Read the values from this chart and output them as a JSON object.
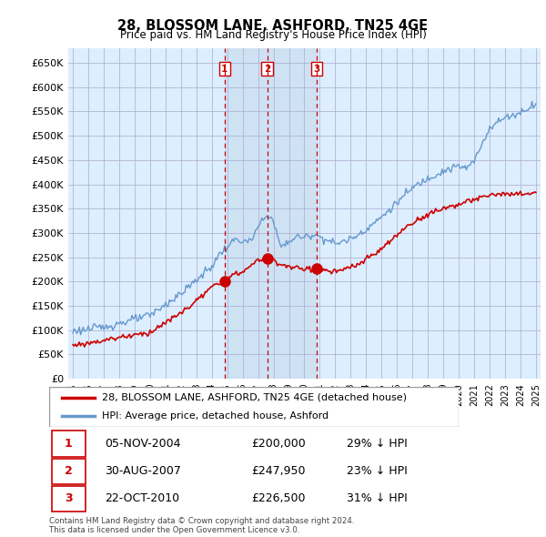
{
  "title": "28, BLOSSOM LANE, ASHFORD, TN25 4GE",
  "subtitle": "Price paid vs. HM Land Registry's House Price Index (HPI)",
  "legend_label_red": "28, BLOSSOM LANE, ASHFORD, TN25 4GE (detached house)",
  "legend_label_blue": "HPI: Average price, detached house, Ashford",
  "transactions": [
    {
      "num": 1,
      "date": "05-NOV-2004",
      "price": 200000,
      "price_str": "£200,000",
      "hpi_diff": "29% ↓ HPI"
    },
    {
      "num": 2,
      "date": "30-AUG-2007",
      "price": 247950,
      "price_str": "£247,950",
      "hpi_diff": "23% ↓ HPI"
    },
    {
      "num": 3,
      "date": "22-OCT-2010",
      "price": 226500,
      "price_str": "£226,500",
      "hpi_diff": "31% ↓ HPI"
    }
  ],
  "t1_year": 2004.833,
  "t2_year": 2007.583,
  "t3_year": 2010.792,
  "footer_line1": "Contains HM Land Registry data © Crown copyright and database right 2024.",
  "footer_line2": "This data is licensed under the Open Government Licence v3.0.",
  "ylim": [
    0,
    680000
  ],
  "yticks": [
    0,
    50000,
    100000,
    150000,
    200000,
    250000,
    300000,
    350000,
    400000,
    450000,
    500000,
    550000,
    600000,
    650000
  ],
  "xlim_min": 1994.7,
  "xlim_max": 2025.3,
  "background_color": "#ffffff",
  "plot_bg_color": "#ddeeff",
  "grid_color": "#aaaacc",
  "red_color": "#cc0000",
  "blue_color": "#6699cc",
  "shade_color": "#c8ddf0"
}
